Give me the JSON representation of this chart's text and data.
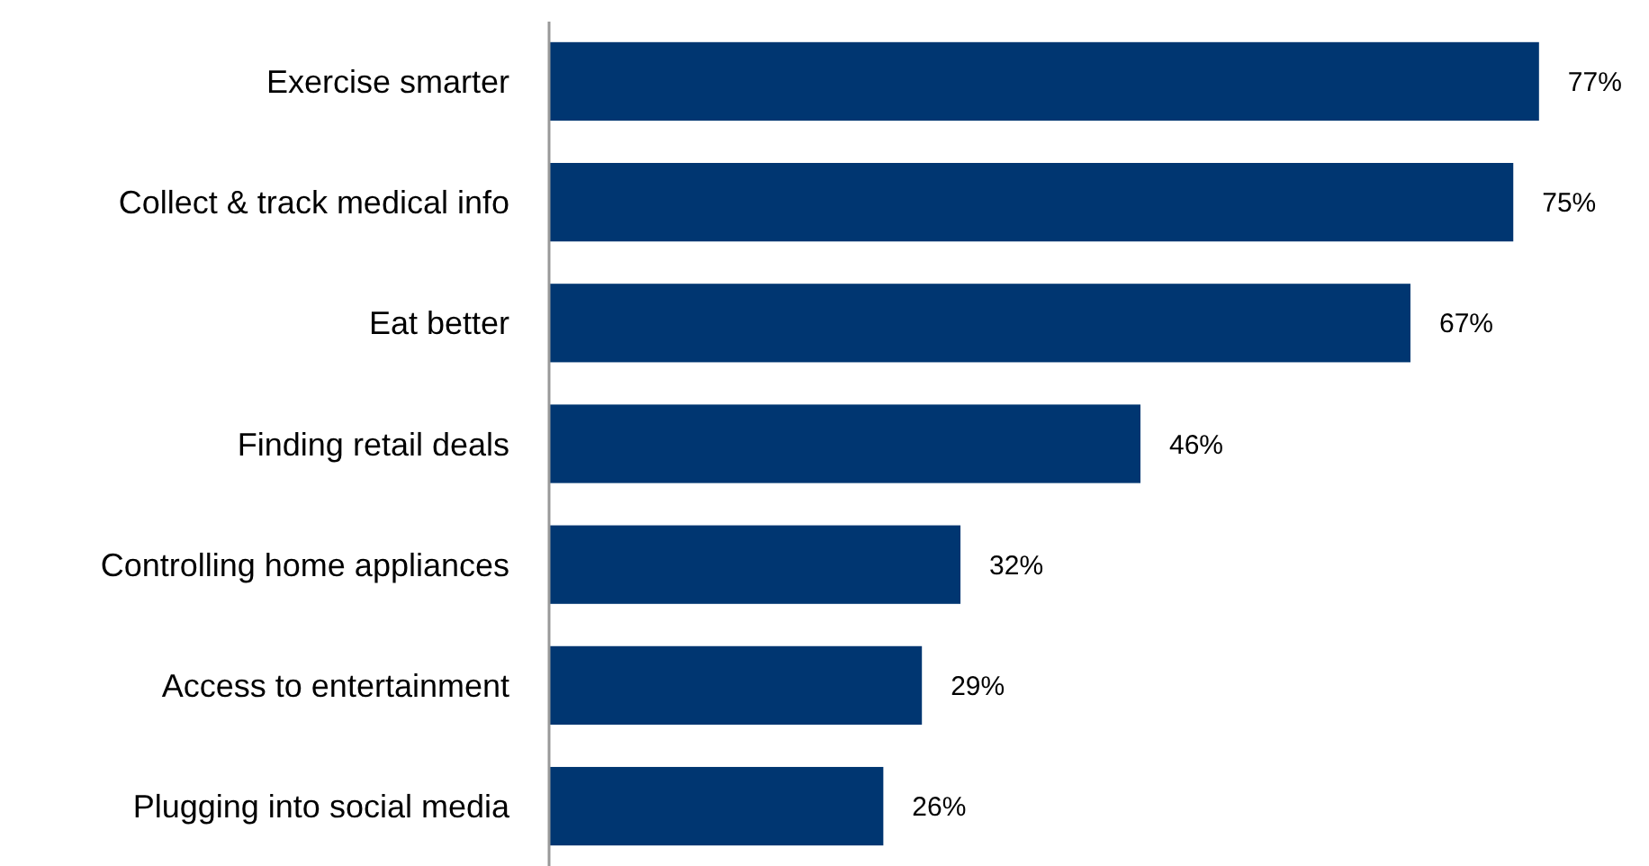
{
  "chart_data": {
    "type": "bar",
    "orientation": "horizontal",
    "categories": [
      "Exercise smarter",
      "Collect & track medical info",
      "Eat better",
      "Finding retail deals",
      "Controlling home appliances",
      "Access to entertainment",
      "Plugging into social media"
    ],
    "values": [
      77,
      75,
      67,
      46,
      32,
      29,
      26
    ],
    "value_labels": [
      "77%",
      "75%",
      "67%",
      "46%",
      "32%",
      "29%",
      "26%"
    ],
    "color": "#003671"
  }
}
